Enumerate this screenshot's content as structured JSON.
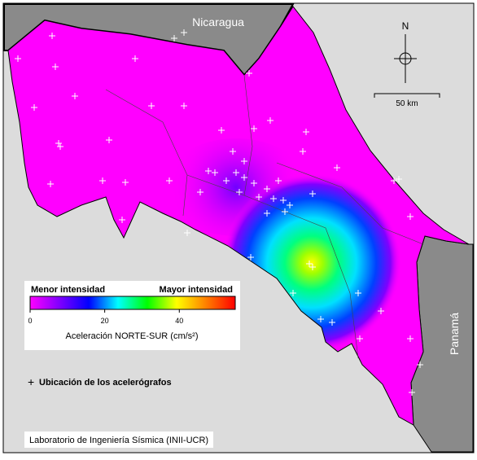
{
  "map": {
    "labels": {
      "nicaragua": "Nicaragua",
      "panama": "Panamá",
      "north": "N",
      "scale": "50 km"
    },
    "colorbar": {
      "low_label": "Menor intensidad",
      "high_label": "Mayor intensidad",
      "title": "Aceleración NORTE-SUR (cm/s²)",
      "lim": [
        0,
        55
      ],
      "ticks": [
        0,
        20,
        40
      ],
      "colors": [
        "#ff00ff",
        "#8000ff",
        "#0000ff",
        "#00ffff",
        "#00ff00",
        "#ffff00",
        "#ff8000",
        "#ff0000"
      ]
    },
    "legend": {
      "station": "Ubicación de los acelerógrafos"
    },
    "credit": "Laboratorio de Ingeniería Sísmica (INII-UCR)"
  }
}
